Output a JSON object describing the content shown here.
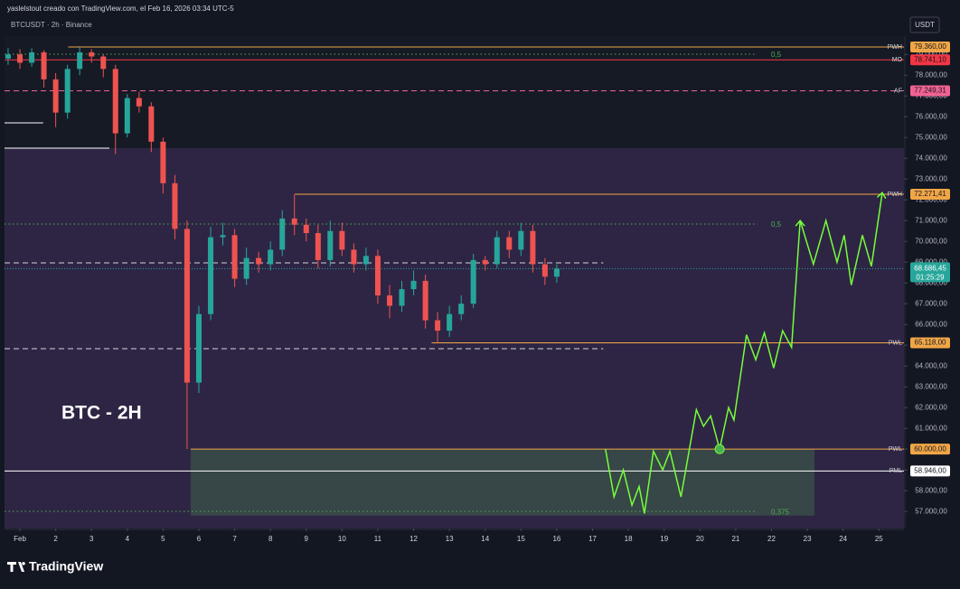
{
  "header": {
    "attribution": "yaslelstout creado con TradingView.com, el Feb 16, 2026 03:34 UTC-5",
    "logo": "TradingView"
  },
  "chart_data": {
    "type": "candlestick",
    "title": "BTCUSDT · 2h · Binance",
    "annotation": "BTC - 2H",
    "currency": "USDT",
    "up_color": "#26a69a",
    "down_color": "#ef5350",
    "xlim": [
      0.57,
      25.7
    ],
    "ylim": [
      56180,
      79880
    ],
    "xticks": [
      {
        "value": 1,
        "label": "Feb"
      },
      2,
      3,
      4,
      5,
      6,
      7,
      8,
      9,
      10,
      11,
      12,
      13,
      14,
      15,
      16,
      17,
      18,
      19,
      20,
      21,
      22,
      23,
      24,
      25
    ],
    "yticks": [
      {
        "value": 57000,
        "label": "57.000,00"
      },
      {
        "value": 58000,
        "label": "58.000,00"
      },
      {
        "value": 59000,
        "label": "59.000,00"
      },
      {
        "value": 60000,
        "label": "60.000,00"
      },
      {
        "value": 61000,
        "label": "61.000,00"
      },
      {
        "value": 62000,
        "label": "62.000,00"
      },
      {
        "value": 63000,
        "label": "63.000,00"
      },
      {
        "value": 64000,
        "label": "64.000,00"
      },
      {
        "value": 65000,
        "label": "65.000,00"
      },
      {
        "value": 66000,
        "label": "66.000,00"
      },
      {
        "value": 67000,
        "label": "67.000,00"
      },
      {
        "value": 68000,
        "label": "68.000,00"
      },
      {
        "value": 69000,
        "label": "69.000,00"
      },
      {
        "value": 70000,
        "label": "70.000,00"
      },
      {
        "value": 71000,
        "label": "71.000,00"
      },
      {
        "value": 72000,
        "label": "72.000,00"
      },
      {
        "value": 73000,
        "label": "73.000,00"
      },
      {
        "value": 74000,
        "label": "74.000,00"
      },
      {
        "value": 75000,
        "label": "75.000,00"
      },
      {
        "value": 76000,
        "label": "76.000,00"
      },
      {
        "value": 77000,
        "label": "77.000,00"
      },
      {
        "value": 78000,
        "label": "78.000,00"
      },
      {
        "value": 79000,
        "label": "79.000,00"
      }
    ],
    "x": [
      0.67,
      1,
      1.33,
      1.67,
      2,
      2.33,
      2.67,
      3,
      3.33,
      3.67,
      4,
      4.33,
      4.67,
      5,
      5.33,
      5.67,
      6,
      6.33,
      6.67,
      7,
      7.33,
      7.67,
      8,
      8.33,
      8.67,
      9,
      9.33,
      9.67,
      10,
      10.33,
      10.67,
      11,
      11.33,
      11.67,
      12,
      12.33,
      12.67,
      13,
      13.33,
      13.67,
      14,
      14.33,
      14.67,
      15,
      15.33,
      15.67,
      16
    ],
    "open": [
      78800,
      79000,
      78600,
      79100,
      77800,
      76200,
      78300,
      79100,
      78900,
      78300,
      75200,
      76900,
      76500,
      74800,
      72800,
      70600,
      63200,
      66500,
      70200,
      70300,
      68200,
      69200,
      68900,
      69600,
      71100,
      70800,
      70400,
      69100,
      70500,
      69600,
      68900,
      69300,
      67400,
      66900,
      67700,
      68100,
      66200,
      65700,
      66500,
      67000,
      69100,
      68900,
      70200,
      69600,
      70500,
      68900,
      68300
    ],
    "high": [
      79300,
      79250,
      79300,
      79200,
      78100,
      78500,
      79360,
      79250,
      79000,
      78500,
      77100,
      77200,
      76700,
      75000,
      73200,
      71000,
      66900,
      70700,
      70900,
      70600,
      69700,
      69500,
      70000,
      71500,
      72271.41,
      71100,
      70800,
      71000,
      70900,
      69900,
      69700,
      69600,
      67900,
      68100,
      68600,
      68400,
      66600,
      66900,
      67400,
      69400,
      69300,
      70500,
      70500,
      70900,
      70800,
      69200,
      68900
    ],
    "low": [
      78500,
      78300,
      78400,
      77400,
      75500,
      75900,
      78000,
      78600,
      77900,
      74200,
      75000,
      76200,
      74300,
      72300,
      70100,
      60000,
      62700,
      66200,
      69800,
      67800,
      67900,
      68500,
      68600,
      69300,
      70300,
      70000,
      68700,
      68800,
      69300,
      68500,
      68600,
      67000,
      66300,
      66600,
      67400,
      65800,
      65118,
      65400,
      66200,
      66800,
      68600,
      68700,
      69200,
      69300,
      68500,
      67900,
      68000
    ],
    "close": [
      79000,
      78600,
      79100,
      77800,
      76200,
      78300,
      79100,
      78900,
      78300,
      75200,
      76900,
      76500,
      74800,
      72800,
      70600,
      63200,
      66500,
      70200,
      70300,
      68200,
      69200,
      68900,
      69600,
      71100,
      70800,
      70400,
      69100,
      70500,
      69600,
      68900,
      69300,
      67400,
      66900,
      67700,
      68100,
      66200,
      65700,
      66500,
      67000,
      69100,
      68900,
      70200,
      69600,
      70500,
      68900,
      68300,
      68686.45
    ],
    "last_price": {
      "value": 68686.45,
      "value_label": "68.686,45",
      "countdown": "01:25:29",
      "color": "#26a69a"
    },
    "zones": [
      {
        "y": [
          74488,
          56180
        ],
        "x": [
          0.57,
          25.7
        ],
        "color": "rgba(110,70,150,0.28)"
      },
      {
        "y": [
          60000,
          56800
        ],
        "x": [
          5.77,
          23.2
        ],
        "color": "rgba(76,140,80,0.33)"
      }
    ],
    "levels": [
      {
        "name": "PWH",
        "value": 79360,
        "value_label": "79.360,00",
        "color": "#f0a646",
        "dash": "solid",
        "from": 2.35,
        "tag": "axis"
      },
      {
        "name": "0,5",
        "value": 79012,
        "color": "#4caf50",
        "dash": "dotted",
        "from": 0.57,
        "to": 21.6,
        "tag": "inline"
      },
      {
        "name": "MO",
        "value": 78741.1,
        "value_label": "78.741,10",
        "color": "#f23645",
        "dash": "solid",
        "from": 0.57,
        "tag": "axis"
      },
      {
        "name": "AF",
        "value": 77249.31,
        "value_label": "77.249,31",
        "color": "#f06292",
        "dash": "dashed",
        "from": 0.57,
        "tag": "axis"
      },
      {
        "value": 75706,
        "color": "#ffffff",
        "dash": "solid",
        "from": 0.57,
        "to": 1.65
      },
      {
        "value": 74488,
        "color": "#ffffff",
        "dash": "solid",
        "from": 0.57,
        "to": 3.5
      },
      {
        "name": "PWH",
        "value": 72271.41,
        "value_label": "72.271,41",
        "color": "#f0a646",
        "dash": "solid",
        "from": 8.68,
        "tag": "axis"
      },
      {
        "name": "0,5",
        "value": 70835,
        "color": "#4caf50",
        "dash": "dotted",
        "from": 0.57,
        "to": 21.6,
        "tag": "inline"
      },
      {
        "value": 68964,
        "color": "#d1d4dc",
        "dash": "dashed",
        "from": 0.57,
        "to": 17.3
      },
      {
        "name": "PWL",
        "value": 65118,
        "value_label": "65.118,00",
        "color": "#f0a646",
        "dash": "solid",
        "from": 12.5,
        "tag": "axis"
      },
      {
        "value": 64832,
        "color": "#d1d4dc",
        "dash": "dashed",
        "from": 0.57,
        "to": 17.3
      },
      {
        "name": "PWL",
        "value": 60000,
        "value_label": "60.000,00",
        "color": "#f0a646",
        "dash": "solid",
        "from": 5.77,
        "tag": "axis"
      },
      {
        "name": "PML",
        "value": 58946,
        "value_label": "58.946,00",
        "color": "#ffffff",
        "dash": "solid",
        "from": 0.57,
        "tag": "axis"
      },
      {
        "name": "0,375",
        "value": 57000,
        "color": "#4caf50",
        "dash": "dotted",
        "from": 0.57,
        "to": 21.6,
        "tag": "inline"
      }
    ],
    "projection": {
      "color": "#76ff3a",
      "x": [
        17.36,
        17.6,
        17.86,
        18.1,
        18.3,
        18.45,
        18.7,
        18.96,
        19.16,
        19.47,
        19.9,
        20.1,
        20.3,
        20.55,
        20.8,
        20.95,
        21.3,
        21.56,
        21.8,
        22.06,
        22.31,
        22.56,
        22.8,
        23.17,
        23.52,
        23.83,
        24.03,
        24.23,
        24.54,
        24.79,
        25.09
      ],
      "values": [
        60000,
        57700,
        59000,
        57300,
        58200,
        56900,
        59900,
        59000,
        59900,
        57700,
        61900,
        61100,
        61600,
        60000,
        62000,
        61400,
        65500,
        64300,
        65600,
        63900,
        65700,
        64900,
        71000,
        68900,
        71000,
        69000,
        70300,
        67900,
        70300,
        68800,
        72300
      ],
      "point": {
        "x": 20.55,
        "value": 60000
      }
    }
  }
}
